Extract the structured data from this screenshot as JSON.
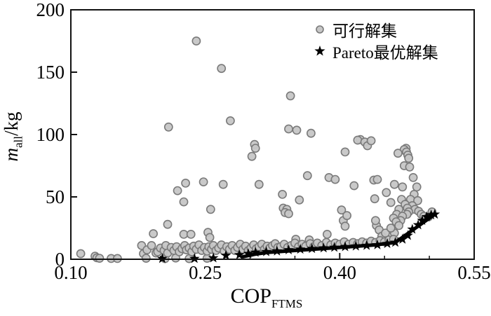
{
  "figure": {
    "legend": {
      "items": [
        {
          "label": "可行解集",
          "marker": "circle"
        },
        {
          "label": "Pareto最优解集",
          "marker": "star"
        }
      ]
    },
    "x_axis": {
      "label_main": "COP",
      "label_sub": "FTMS",
      "tick_labels": [
        "0.10",
        "0.25",
        "0.40",
        "0.55"
      ]
    },
    "y_axis": {
      "label_main": "m",
      "label_sub": "all",
      "label_unit": "/kg",
      "tick_labels": [
        "0",
        "50",
        "100",
        "150",
        "200"
      ]
    }
  },
  "chart_data": {
    "type": "scatter",
    "title": "",
    "xlabel": "COP_FTMS",
    "ylabel": "m_all /kg",
    "xlim": [
      0.1,
      0.55
    ],
    "ylim": [
      0,
      200
    ],
    "x_major_ticks": [
      0.1,
      0.25,
      0.4,
      0.55
    ],
    "x_minor_ticks": [
      0.15,
      0.2,
      0.3,
      0.35,
      0.45,
      0.5
    ],
    "y_major_ticks": [
      0,
      50,
      100,
      150,
      200
    ],
    "grid": false,
    "legend_position": "upper right",
    "colors": {
      "feasible_fill": "#c6c6c6",
      "feasible_edge": "#7a7a7a",
      "pareto": "#000000",
      "axis": "#111111"
    },
    "series": [
      {
        "name": "可行解集",
        "marker": "circle",
        "points": [
          [
            0.24,
            175
          ],
          [
            0.268,
            153
          ],
          [
            0.345,
            131
          ],
          [
            0.278,
            111
          ],
          [
            0.209,
            106
          ],
          [
            0.343,
            104.5
          ],
          [
            0.352,
            103.5
          ],
          [
            0.368,
            101
          ],
          [
            0.305,
            92
          ],
          [
            0.306,
            89
          ],
          [
            0.302,
            82.5
          ],
          [
            0.423,
            96
          ],
          [
            0.42,
            95.5
          ],
          [
            0.428,
            94
          ],
          [
            0.431,
            91
          ],
          [
            0.406,
            86
          ],
          [
            0.364,
            67
          ],
          [
            0.388,
            65.5
          ],
          [
            0.395,
            64
          ],
          [
            0.416,
            59
          ],
          [
            0.438,
            63.5
          ],
          [
            0.336,
            52
          ],
          [
            0.355,
            47.5
          ],
          [
            0.337,
            41
          ],
          [
            0.341,
            40
          ],
          [
            0.339,
            37.5
          ],
          [
            0.343,
            36.5
          ],
          [
            0.402,
            39.5
          ],
          [
            0.404,
            31
          ],
          [
            0.406,
            26.5
          ],
          [
            0.408,
            35
          ],
          [
            0.228,
            61
          ],
          [
            0.248,
            62
          ],
          [
            0.27,
            60
          ],
          [
            0.31,
            60
          ],
          [
            0.219,
            55
          ],
          [
            0.226,
            46
          ],
          [
            0.256,
            40
          ],
          [
            0.208,
            28
          ],
          [
            0.192,
            20.5
          ],
          [
            0.226,
            20
          ],
          [
            0.234,
            20
          ],
          [
            0.253,
            21.5
          ],
          [
            0.255,
            17.5
          ],
          [
            0.435,
            95
          ],
          [
            0.474,
            89
          ],
          [
            0.472,
            88
          ],
          [
            0.4745,
            86
          ],
          [
            0.465,
            85
          ],
          [
            0.476,
            83.5
          ],
          [
            0.477,
            81
          ],
          [
            0.472,
            75
          ],
          [
            0.478,
            74
          ],
          [
            0.482,
            65.5
          ],
          [
            0.442,
            64
          ],
          [
            0.461,
            60
          ],
          [
            0.47,
            58
          ],
          [
            0.486,
            58
          ],
          [
            0.452,
            53.5
          ],
          [
            0.483,
            52
          ],
          [
            0.439,
            48.5
          ],
          [
            0.469,
            48
          ],
          [
            0.479,
            48
          ],
          [
            0.487,
            47
          ],
          [
            0.457,
            45.5
          ],
          [
            0.473,
            44
          ],
          [
            0.481,
            43
          ],
          [
            0.4755,
            41
          ],
          [
            0.484,
            40
          ],
          [
            0.466,
            40
          ],
          [
            0.477,
            38
          ],
          [
            0.488,
            38.5
          ],
          [
            0.491,
            36
          ],
          [
            0.475,
            36
          ],
          [
            0.4635,
            36
          ],
          [
            0.494,
            34.5
          ],
          [
            0.47,
            34.5
          ],
          [
            0.46,
            33
          ],
          [
            0.468,
            31
          ],
          [
            0.503,
            38
          ],
          [
            0.499,
            34
          ],
          [
            0.351,
            16
          ],
          [
            0.366,
            15.5
          ],
          [
            0.386,
            20
          ],
          [
            0.441,
            27
          ],
          [
            0.44,
            31
          ],
          [
            0.444,
            23.5
          ],
          [
            0.447,
            18.5
          ],
          [
            0.451,
            21
          ],
          [
            0.461,
            21
          ],
          [
            0.457,
            25
          ],
          [
            0.463,
            30
          ],
          [
            0.466,
            27
          ],
          [
            0.111,
            4.5
          ],
          [
            0.127,
            2.5
          ],
          [
            0.129,
            1.2
          ],
          [
            0.132,
            0.8
          ],
          [
            0.145,
            0.6
          ],
          [
            0.152,
            0.6
          ],
          [
            0.179,
            11
          ],
          [
            0.181,
            4.5
          ],
          [
            0.184,
            0.8
          ],
          [
            0.185,
            7.5
          ],
          [
            0.19,
            11
          ],
          [
            0.195,
            5
          ],
          [
            0.205,
            0.5
          ],
          [
            0.217,
            1
          ],
          [
            0.232,
            0.5
          ],
          [
            0.252,
            0.8
          ],
          [
            0.197,
            6
          ],
          [
            0.2,
            9
          ],
          [
            0.204,
            7
          ],
          [
            0.206,
            11
          ],
          [
            0.208,
            5
          ],
          [
            0.212,
            9.5
          ],
          [
            0.215,
            7
          ],
          [
            0.218,
            10
          ],
          [
            0.221,
            6
          ],
          [
            0.224,
            8.5
          ],
          [
            0.227,
            11
          ],
          [
            0.229,
            7.5
          ],
          [
            0.232,
            9
          ],
          [
            0.235,
            6
          ],
          [
            0.237,
            10.5
          ],
          [
            0.24,
            8
          ],
          [
            0.243,
            11.5
          ],
          [
            0.246,
            7
          ],
          [
            0.249,
            9.5
          ],
          [
            0.252,
            6.5
          ],
          [
            0.254,
            10
          ],
          [
            0.257,
            8
          ],
          [
            0.259,
            11
          ],
          [
            0.262,
            7
          ],
          [
            0.265,
            9
          ],
          [
            0.268,
            11.5
          ],
          [
            0.271,
            6.5
          ],
          [
            0.274,
            10
          ],
          [
            0.277,
            8
          ],
          [
            0.28,
            11
          ],
          [
            0.283,
            7
          ],
          [
            0.286,
            9.5
          ],
          [
            0.289,
            12
          ],
          [
            0.292,
            8
          ],
          [
            0.295,
            10.5
          ],
          [
            0.298,
            7
          ],
          [
            0.301,
            9
          ],
          [
            0.304,
            11.5
          ],
          [
            0.307,
            8.5
          ],
          [
            0.31,
            10
          ],
          [
            0.313,
            12
          ],
          [
            0.316,
            8
          ],
          [
            0.319,
            10.5
          ],
          [
            0.322,
            9
          ],
          [
            0.325,
            11
          ],
          [
            0.328,
            12.5
          ],
          [
            0.331,
            9.5
          ],
          [
            0.334,
            10
          ],
          [
            0.338,
            12
          ],
          [
            0.342,
            9.5
          ],
          [
            0.346,
            11
          ],
          [
            0.35,
            13
          ],
          [
            0.354,
            10
          ],
          [
            0.358,
            12
          ],
          [
            0.362,
            10.5
          ],
          [
            0.367,
            12.5
          ],
          [
            0.371,
            10
          ],
          [
            0.375,
            13
          ],
          [
            0.38,
            11
          ],
          [
            0.385,
            13.5
          ],
          [
            0.39,
            11.5
          ],
          [
            0.395,
            13
          ],
          [
            0.4,
            12
          ],
          [
            0.405,
            14
          ],
          [
            0.41,
            12
          ],
          [
            0.415,
            13.5
          ],
          [
            0.42,
            12.5
          ],
          [
            0.425,
            14
          ],
          [
            0.43,
            13
          ],
          [
            0.435,
            14.5
          ],
          [
            0.44,
            13.5
          ],
          [
            0.445,
            15
          ],
          [
            0.45,
            14
          ],
          [
            0.455,
            15.5
          ],
          [
            0.46,
            16
          ]
        ]
      },
      {
        "name": "Pareto最优解集",
        "marker": "star",
        "points": [
          [
            0.202,
            0.5
          ],
          [
            0.238,
            0.5
          ],
          [
            0.259,
            1
          ],
          [
            0.273,
            3
          ],
          [
            0.288,
            3.5
          ],
          [
            0.298,
            4.5
          ],
          [
            0.306,
            5.5
          ],
          [
            0.318,
            6
          ],
          [
            0.33,
            6.5
          ],
          [
            0.343,
            7.5
          ],
          [
            0.356,
            8
          ],
          [
            0.369,
            8.5
          ],
          [
            0.382,
            9
          ],
          [
            0.394,
            9.5
          ],
          [
            0.406,
            10
          ],
          [
            0.418,
            10.5
          ],
          [
            0.43,
            11
          ],
          [
            0.442,
            11.5
          ],
          [
            0.453,
            12.5
          ],
          [
            0.462,
            13.5
          ],
          [
            0.47,
            16
          ],
          [
            0.476,
            19
          ],
          [
            0.481,
            24
          ],
          [
            0.4875,
            27.5
          ],
          [
            0.492,
            31
          ],
          [
            0.497,
            34
          ],
          [
            0.502,
            35.5
          ],
          [
            0.506,
            36
          ]
        ]
      }
    ],
    "pareto_front_line": [
      [
        0.292,
        2
      ],
      [
        0.305,
        4
      ],
      [
        0.32,
        5.5
      ],
      [
        0.35,
        7
      ],
      [
        0.38,
        8.5
      ],
      [
        0.41,
        10
      ],
      [
        0.44,
        11.5
      ],
      [
        0.462,
        13.5
      ],
      [
        0.506,
        36
      ]
    ]
  }
}
